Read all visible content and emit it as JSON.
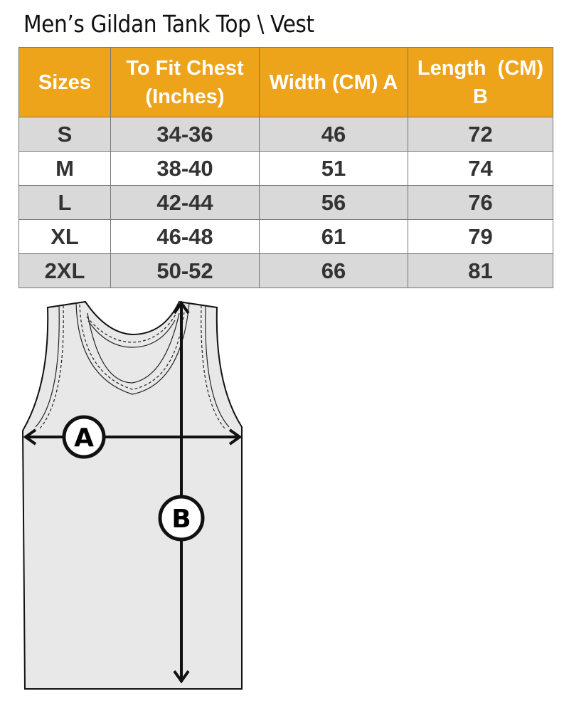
{
  "title": "Men’s Gildan Tank Top \\ Vest",
  "table": {
    "headers": [
      "Sizes",
      "To Fit Chest (Inches)",
      "Width (CM) A",
      "Length  (CM) B"
    ],
    "rows": [
      [
        "S",
        "34-36",
        "46",
        "72"
      ],
      [
        "M",
        "38-40",
        "51",
        "74"
      ],
      [
        "L",
        "42-44",
        "56",
        "76"
      ],
      [
        "XL",
        "46-48",
        "61",
        "79"
      ],
      [
        "2XL",
        "50-52",
        "66",
        "81"
      ]
    ]
  },
  "diagram": {
    "label_a": "A",
    "label_b": "B"
  },
  "colors": {
    "header": "#eda31a",
    "row_alt": "#d9d9d9"
  }
}
